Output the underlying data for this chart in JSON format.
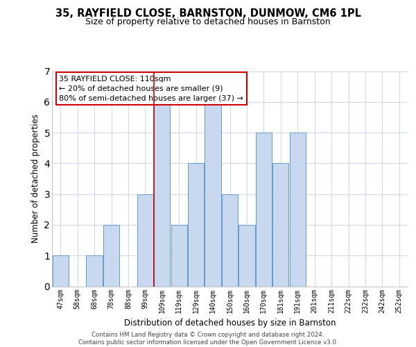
{
  "title": "35, RAYFIELD CLOSE, BARNSTON, DUNMOW, CM6 1PL",
  "subtitle": "Size of property relative to detached houses in Barnston",
  "xlabel": "Distribution of detached houses by size in Barnston",
  "ylabel": "Number of detached properties",
  "bins": [
    "47sqm",
    "58sqm",
    "68sqm",
    "78sqm",
    "88sqm",
    "99sqm",
    "109sqm",
    "119sqm",
    "129sqm",
    "140sqm",
    "150sqm",
    "160sqm",
    "170sqm",
    "181sqm",
    "191sqm",
    "201sqm",
    "211sqm",
    "222sqm",
    "232sqm",
    "242sqm",
    "252sqm"
  ],
  "counts": [
    1,
    0,
    1,
    2,
    0,
    3,
    6,
    2,
    4,
    6,
    3,
    2,
    5,
    4,
    5,
    0,
    0,
    0,
    0,
    0,
    0
  ],
  "bar_color": "#c8d8ef",
  "bar_edgecolor": "#6699cc",
  "highlight_index": 6,
  "highlight_line_color": "#cc0000",
  "annotation_text": "35 RAYFIELD CLOSE: 110sqm\n← 20% of detached houses are smaller (9)\n80% of semi-detached houses are larger (37) →",
  "annotation_box_edgecolor": "#cc0000",
  "annotation_box_facecolor": "#ffffff",
  "ylim": [
    0,
    7
  ],
  "yticks": [
    0,
    1,
    2,
    3,
    4,
    5,
    6,
    7
  ],
  "footer": "Contains HM Land Registry data © Crown copyright and database right 2024.\nContains public sector information licensed under the Open Government Licence v3.0.",
  "background_color": "#ffffff",
  "grid_color": "#d0d8e8"
}
